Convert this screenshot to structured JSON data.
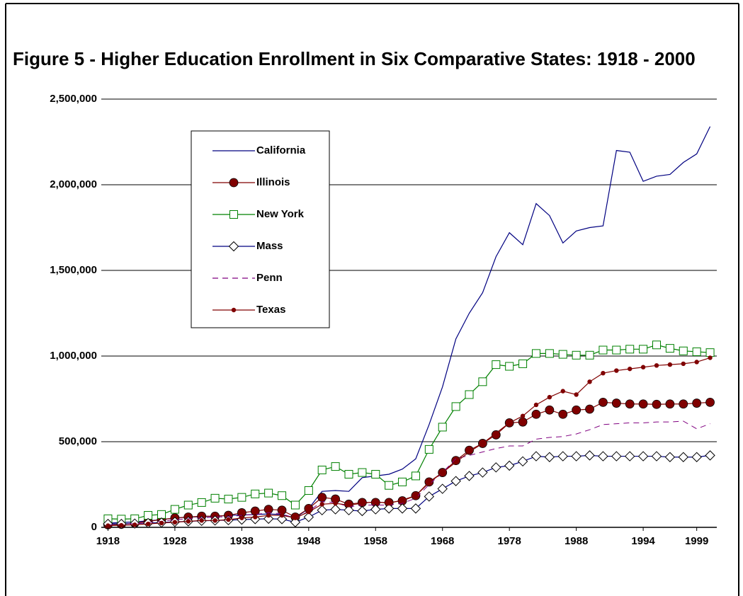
{
  "chart_data": {
    "type": "line",
    "title": "Figure 5 - Higher Education Enrollment in Six Comparative States: 1918 - 2000",
    "categories": [
      "1918",
      null,
      null,
      null,
      null,
      "1928",
      null,
      null,
      null,
      null,
      "1938",
      null,
      null,
      null,
      null,
      "1948",
      null,
      null,
      null,
      null,
      "1958",
      null,
      null,
      null,
      null,
      "1968",
      null,
      null,
      null,
      null,
      "1978",
      null,
      null,
      null,
      null,
      "1988",
      null,
      null,
      null,
      null,
      "1994",
      null,
      null,
      null,
      "1999",
      null
    ],
    "ylim": [
      0,
      2500000
    ],
    "yticks": [
      0,
      {
        "value": 500000,
        "label": "500,000"
      },
      {
        "value": 1000000,
        "label": "1,000,000"
      },
      {
        "value": 1500000,
        "label": "1,500,000"
      },
      {
        "value": 2000000,
        "label": "2,000,000"
      },
      {
        "value": 2500000,
        "label": "2,500,000"
      }
    ],
    "grid": true,
    "legend": "upper left",
    "series": [
      {
        "name": "California",
        "color": "#000080",
        "marker": "none",
        "values": [
          25000,
          28000,
          32000,
          38000,
          45000,
          55000,
          60000,
          62000,
          65000,
          70000,
          72000,
          75000,
          78000,
          75000,
          55000,
          110000,
          210000,
          215000,
          210000,
          290000,
          300000,
          310000,
          340000,
          400000,
          600000,
          820000,
          1100000,
          1250000,
          1370000,
          1580000,
          1720000,
          1650000,
          1890000,
          1820000,
          1660000,
          1730000,
          1750000,
          1760000,
          2200000,
          2190000,
          2020000,
          2050000,
          2060000,
          2130000,
          2180000,
          2340000
        ]
      },
      {
        "name": "Illinois",
        "color": "#800000",
        "marker": "big-circle",
        "values": [
          15000,
          18000,
          25000,
          35000,
          45000,
          55000,
          60000,
          65000,
          65000,
          70000,
          85000,
          95000,
          105000,
          100000,
          60000,
          110000,
          175000,
          165000,
          135000,
          145000,
          145000,
          145000,
          155000,
          185000,
          265000,
          320000,
          390000,
          450000,
          490000,
          540000,
          610000,
          615000,
          660000,
          685000,
          660000,
          685000,
          690000,
          730000,
          725000,
          720000,
          720000,
          718000,
          720000,
          720000,
          725000,
          730000
        ]
      },
      {
        "name": "New York",
        "color": "#008000",
        "marker": "square",
        "values": [
          50000,
          48000,
          50000,
          70000,
          75000,
          105000,
          130000,
          145000,
          170000,
          165000,
          175000,
          195000,
          200000,
          185000,
          130000,
          215000,
          335000,
          355000,
          310000,
          320000,
          310000,
          245000,
          265000,
          300000,
          455000,
          585000,
          705000,
          775000,
          850000,
          950000,
          940000,
          955000,
          1015000,
          1015000,
          1010000,
          1005000,
          1005000,
          1035000,
          1035000,
          1040000,
          1040000,
          1065000,
          1045000,
          1030000,
          1025000,
          1020000
        ]
      },
      {
        "name": "Mass",
        "color": "#000080",
        "marker": "diamond",
        "values": [
          20000,
          20000,
          22000,
          25000,
          28000,
          32000,
          35000,
          38000,
          40000,
          42000,
          45000,
          48000,
          50000,
          48000,
          30000,
          60000,
          100000,
          105000,
          100000,
          95000,
          105000,
          110000,
          110000,
          110000,
          180000,
          225000,
          270000,
          300000,
          320000,
          350000,
          360000,
          385000,
          415000,
          410000,
          415000,
          415000,
          420000,
          415000,
          415000,
          415000,
          415000,
          415000,
          410000,
          410000,
          410000,
          420000
        ]
      },
      {
        "name": "Penn",
        "color": "#800080",
        "marker": "dashed",
        "values": [
          15000,
          18000,
          22000,
          28000,
          35000,
          45000,
          50000,
          55000,
          60000,
          62000,
          70000,
          75000,
          85000,
          80000,
          50000,
          95000,
          150000,
          145000,
          120000,
          130000,
          130000,
          130000,
          140000,
          170000,
          250000,
          320000,
          400000,
          420000,
          440000,
          460000,
          475000,
          475000,
          515000,
          525000,
          530000,
          545000,
          570000,
          600000,
          605000,
          610000,
          610000,
          615000,
          615000,
          620000,
          575000,
          605000
        ]
      },
      {
        "name": "Texas",
        "color": "#800000",
        "marker": "small-circle",
        "values": [
          10000,
          12000,
          15000,
          20000,
          25000,
          30000,
          35000,
          40000,
          40000,
          45000,
          55000,
          60000,
          70000,
          70000,
          55000,
          90000,
          135000,
          140000,
          130000,
          140000,
          150000,
          140000,
          160000,
          185000,
          260000,
          320000,
          380000,
          440000,
          490000,
          550000,
          610000,
          650000,
          715000,
          760000,
          795000,
          775000,
          850000,
          900000,
          915000,
          925000,
          935000,
          945000,
          950000,
          955000,
          965000,
          990000
        ]
      }
    ]
  }
}
